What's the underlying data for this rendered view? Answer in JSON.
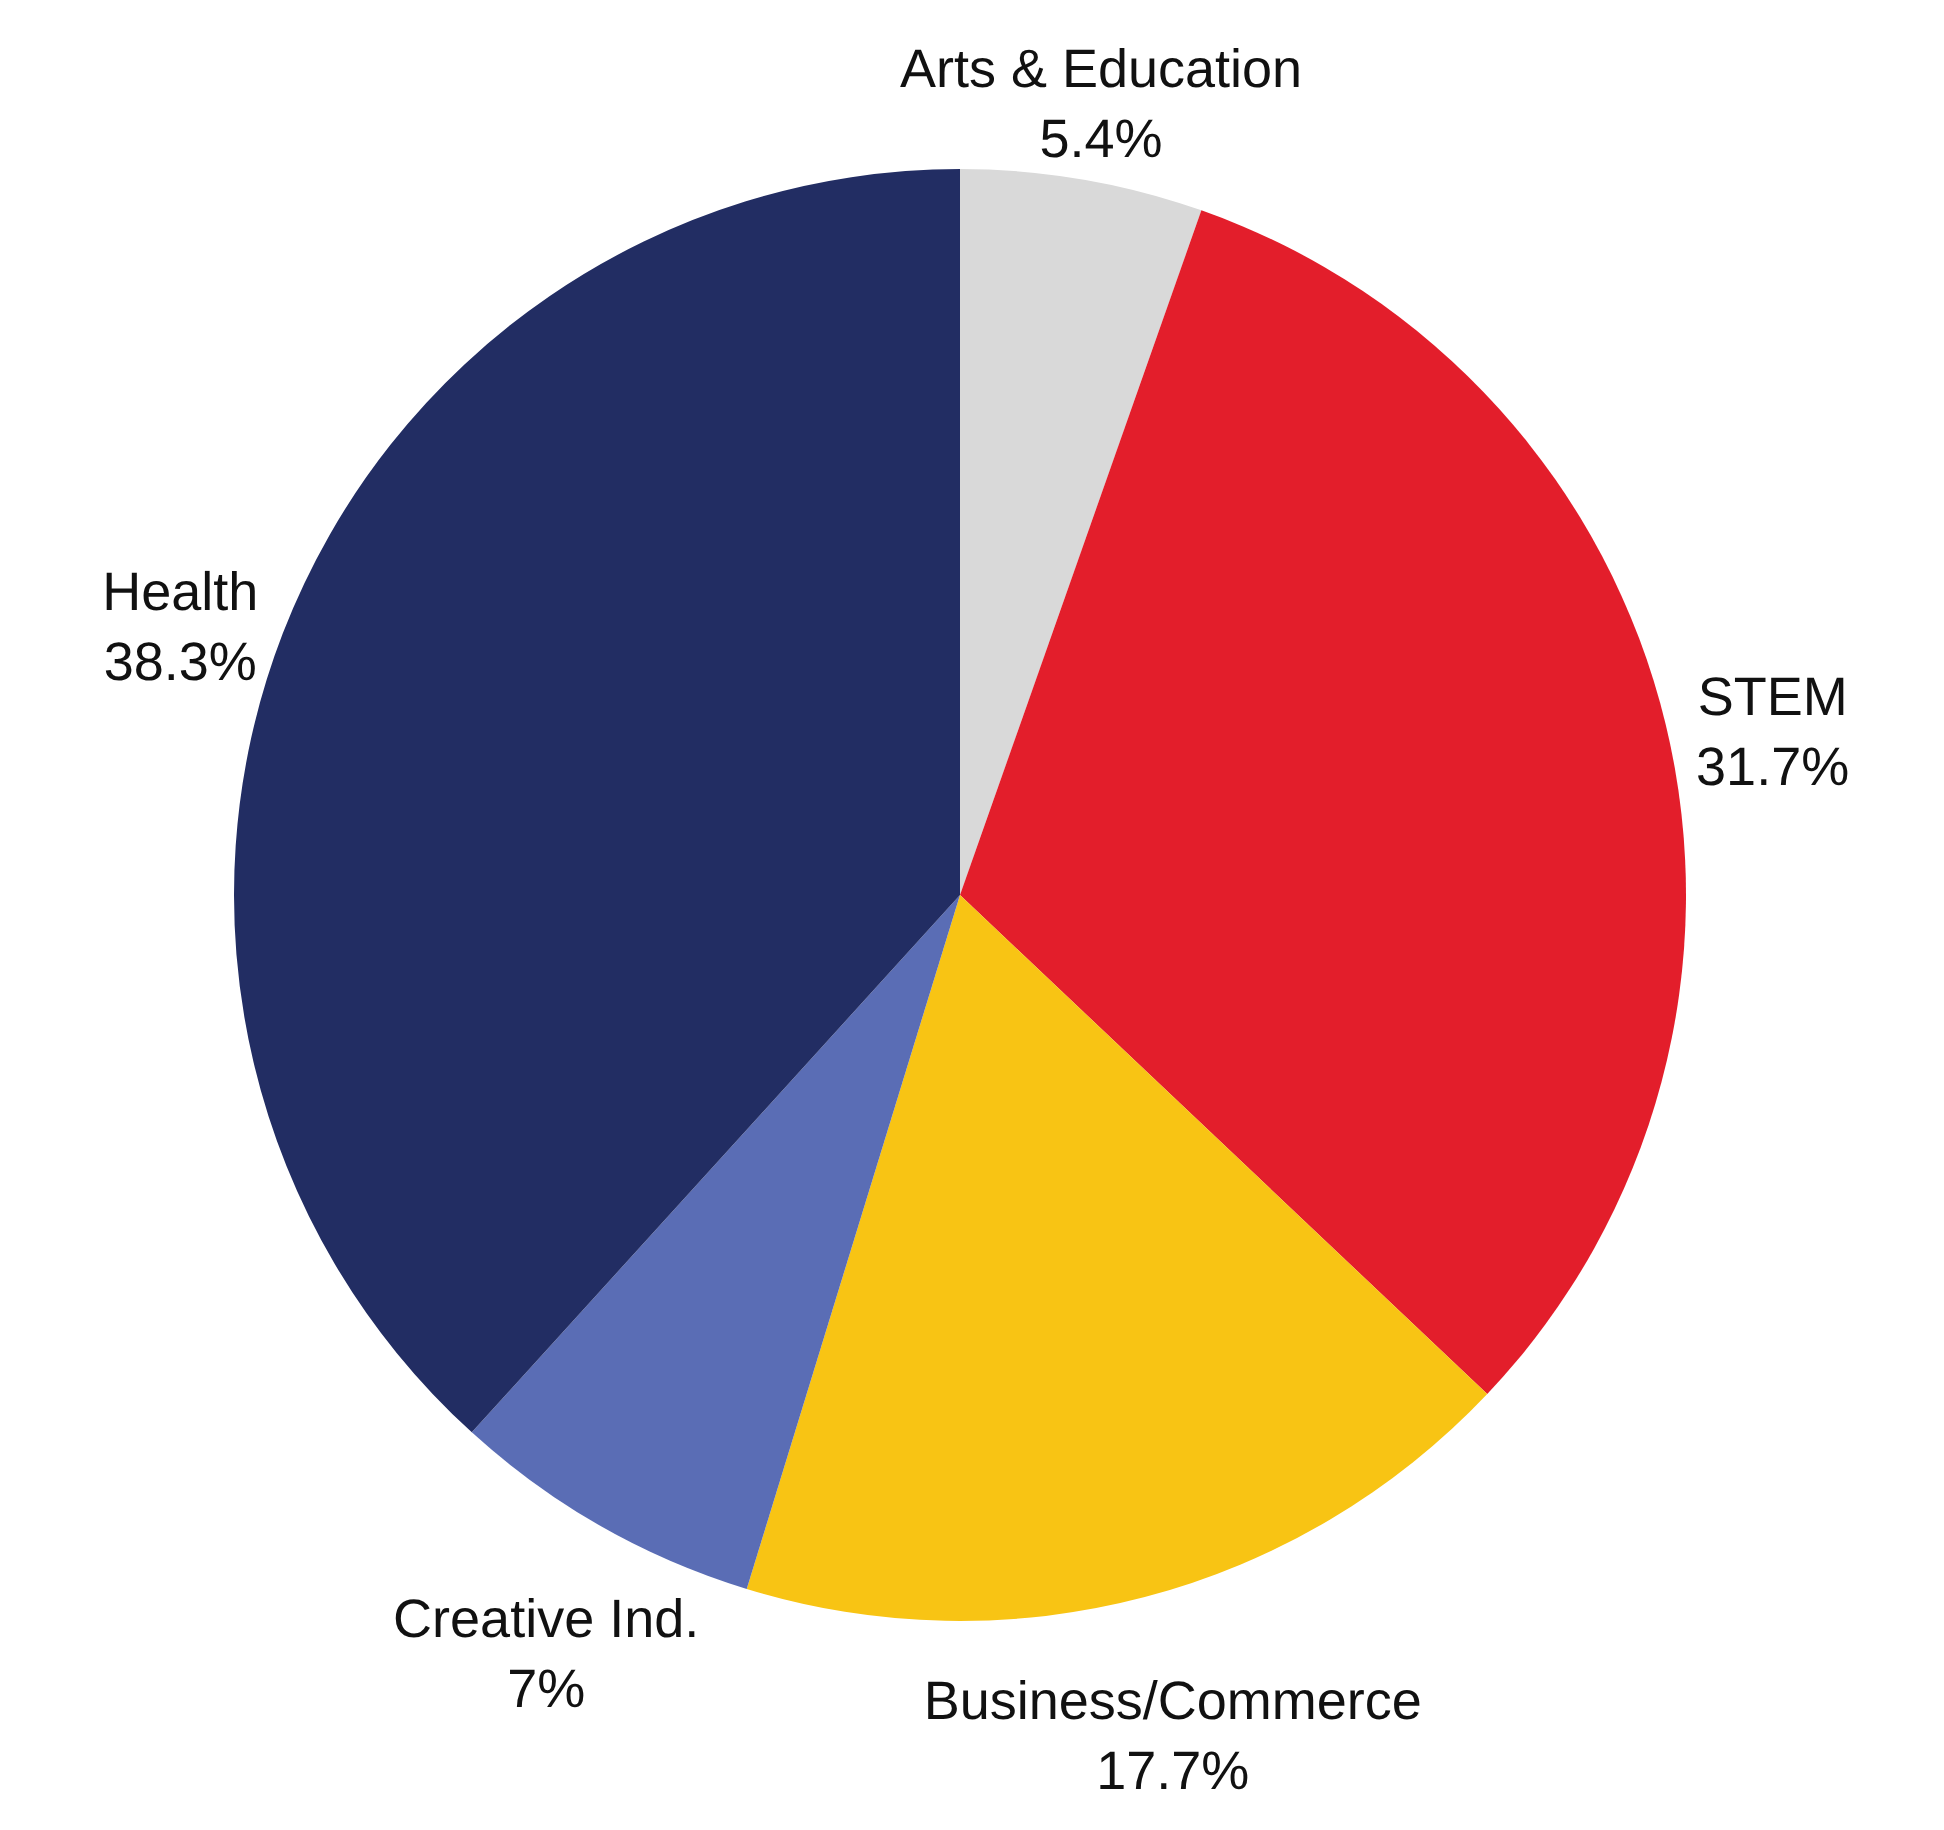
{
  "chart_data": {
    "type": "pie",
    "categories": [
      "Arts & Education",
      "STEM",
      "Business/Commerce",
      "Creative Ind.",
      "Health"
    ],
    "values": [
      5.4,
      31.7,
      17.7,
      7,
      38.3
    ],
    "colors": [
      "#d9d9d9",
      "#e31e2b",
      "#f8c414",
      "#5a6db5",
      "#222d63"
    ],
    "value_labels": [
      "5.4%",
      "31.7%",
      "17.7%",
      "7%",
      "38.3%"
    ]
  }
}
